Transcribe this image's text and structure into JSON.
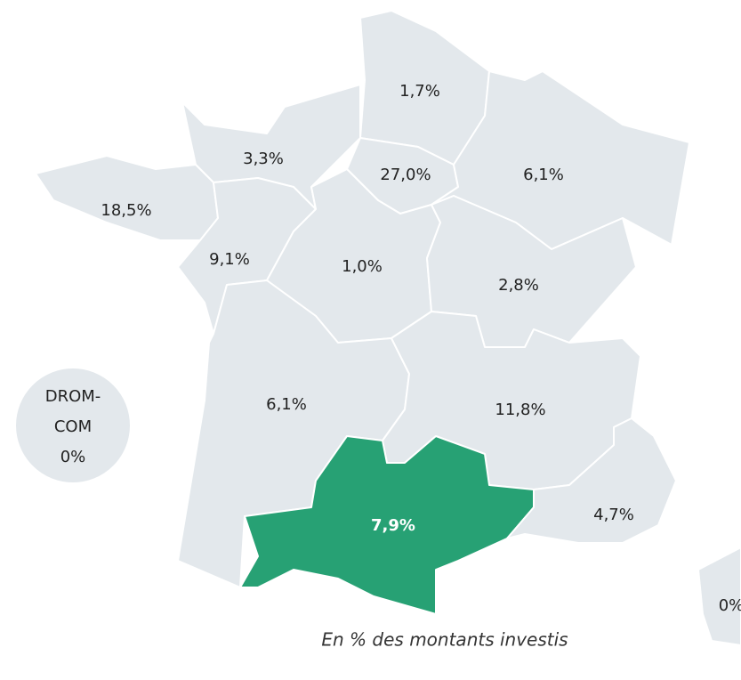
{
  "regions": [
    {
      "label": "1,7%"
    },
    {
      "label": "3,3%"
    },
    {
      "label": "27,0%"
    },
    {
      "label": "6,1%"
    },
    {
      "label": "18,5%"
    },
    {
      "label": "9,1%"
    },
    {
      "label": "1,0%"
    },
    {
      "label": "2,8%"
    },
    {
      "label": "6,1%"
    },
    {
      "label": "11,8%"
    },
    {
      "label": "7,9%"
    },
    {
      "label": "4,7%"
    }
  ],
  "corsica": {
    "label": "0%"
  },
  "drom_com": {
    "name_line1": "DROM-",
    "name_line2": "COM",
    "label": "0%"
  },
  "caption": "En % des montants investis",
  "fill": "#e3e8ec",
  "highlight_color": "#27a174"
}
